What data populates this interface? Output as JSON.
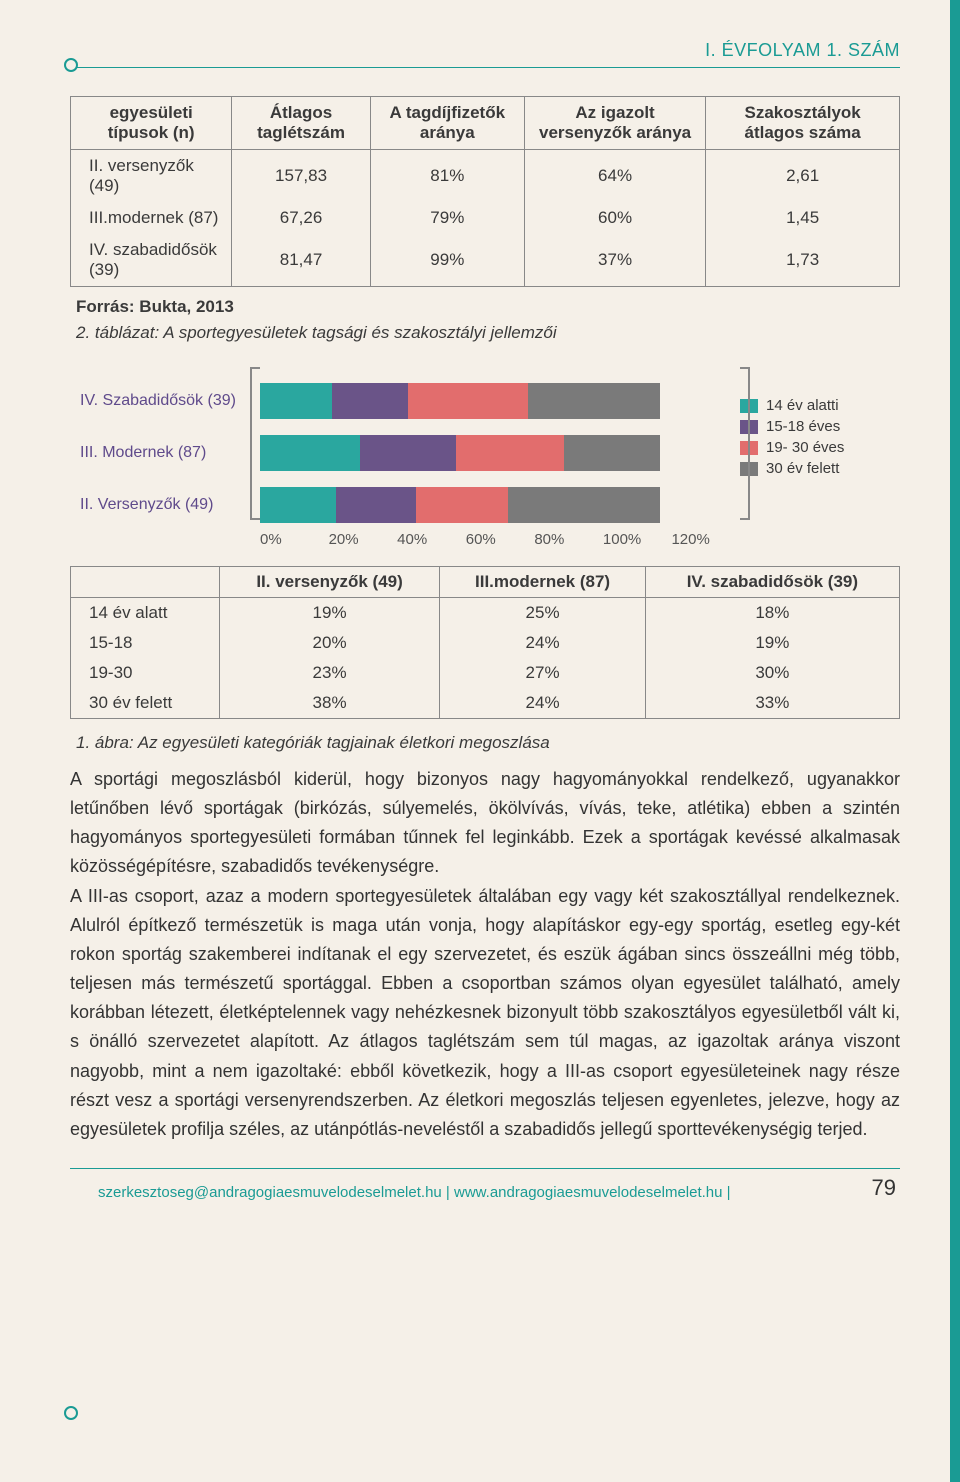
{
  "header": {
    "issue": "I. ÉVFOLYAM 1. SZÁM"
  },
  "colors": {
    "teal": "#2aa79f",
    "purple": "#6a5488",
    "coral": "#e26d6d",
    "grey": "#7a7a7a",
    "accent": "#1a9b94"
  },
  "table1": {
    "headers": [
      "egyesületi típusok (n)",
      "Átlagos taglétszám",
      "A tagdíjfizetők aránya",
      "Az igazolt versenyzők aránya",
      "Szakosztályok átlagos száma"
    ],
    "rows": [
      {
        "label": "II. versenyzők (49)",
        "cells": [
          "157,83",
          "81%",
          "64%",
          "2,61"
        ]
      },
      {
        "label": "III.modernek (87)",
        "cells": [
          "67,26",
          "79%",
          "60%",
          "1,45"
        ]
      },
      {
        "label": "IV. szabadidősök (39)",
        "cells": [
          "81,47",
          "99%",
          "37%",
          "1,73"
        ]
      }
    ],
    "source": "Forrás: Bukta, 2013",
    "caption": "2. táblázat: A sportegyesületek tagsági és szakosztályi jellemzői"
  },
  "chart": {
    "type": "stacked-bar-horizontal",
    "x_ticks": [
      "0%",
      "20%",
      "40%",
      "60%",
      "80%",
      "100%",
      "120%"
    ],
    "xmax_pct": 120,
    "categories": [
      {
        "label": "IV. Szabadidősök (39)",
        "color": "#5f4a8b",
        "segments": [
          18,
          19,
          30,
          33
        ]
      },
      {
        "label": "III. Modernek (87)",
        "color": "#5f4a8b",
        "segments": [
          25,
          24,
          27,
          24
        ]
      },
      {
        "label": "II. Versenyzők (49)",
        "color": "#5f4a8b",
        "segments": [
          19,
          20,
          23,
          38
        ]
      }
    ],
    "series_colors": [
      "#2aa79f",
      "#6a5488",
      "#e26d6d",
      "#7a7a7a"
    ],
    "legend": [
      "14 év alatti",
      "15-18 éves",
      "19- 30 éves",
      "30 év felett"
    ]
  },
  "table2": {
    "col_headers": [
      "II. versenyzők (49)",
      "III.modernek (87)",
      "IV. szabadidősök (39)"
    ],
    "rows": [
      {
        "label": "14 év alatt",
        "cells": [
          "19%",
          "25%",
          "18%"
        ]
      },
      {
        "label": "15-18",
        "cells": [
          "20%",
          "24%",
          "19%"
        ]
      },
      {
        "label": "19-30",
        "cells": [
          "23%",
          "27%",
          "30%"
        ]
      },
      {
        "label": "30 év felett",
        "cells": [
          "38%",
          "24%",
          "33%"
        ]
      }
    ],
    "caption": "1. ábra: Az egyesületi kategóriák tagjainak életkori megoszlása"
  },
  "body": {
    "p1": "A sportági megoszlásból kiderül, hogy bizonyos nagy hagyományokkal rendelkező, ugyanakkor letűnőben lévő sportágak (birkózás, súlyemelés, ökölvívás, vívás, teke, atlétika) ebben a szintén hagyományos sportegyesületi formában tűnnek fel leginkább. Ezek a sportágak kevéssé alkalmasak közösségépítésre, szabadidős tevékenységre.",
    "p2": "A III-as csoport, azaz a modern sportegyesületek általában egy vagy két szakosztállyal rendelkeznek. Alulról építkező természetük is maga után vonja, hogy alapításkor egy-egy sportág, esetleg egy-két rokon sportág szakemberei indítanak el egy szervezetet, és eszük ágában sincs összeállni még több, teljesen más természetű sportággal. Ebben a csoportban számos olyan egyesület található, amely korábban létezett, életképtelennek vagy nehézkesnek bizonyult több szakosztályos egyesületből vált ki, s önálló szervezetet alapított. Az átlagos taglétszám sem túl magas, az igazoltak aránya viszont nagyobb, mint a nem igazoltaké: ebből következik, hogy a III-as csoport egyesületeinek nagy része részt vesz a sportági versenyrendszerben. Az életkori megoszlás teljesen egyenletes, jelezve, hogy az egyesületek profilja széles, az utánpótlás-neveléstől a szabadidős jellegű sporttevékenységig terjed."
  },
  "footer": {
    "email_site": "szerkesztoseg@andragogiaesmuvelodeselmelet.hu | www.andragogiaesmuvelodeselmelet.hu |",
    "page": "79"
  }
}
